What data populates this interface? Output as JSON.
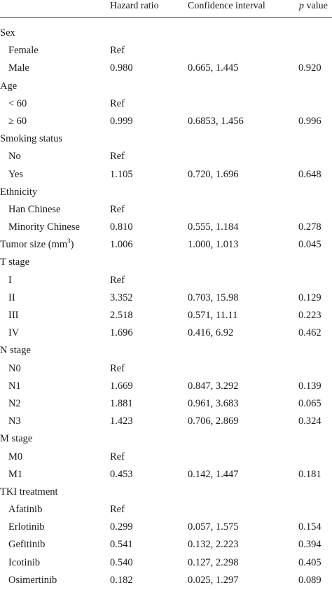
{
  "header": {
    "hazard_ratio": "Hazard ratio",
    "confidence_interval": "Confidence interval",
    "p_value_italic": "p",
    "p_value_suffix": " value"
  },
  "rows": [
    {
      "label": "Sex",
      "hr": "",
      "ci": "",
      "p": "",
      "type": "group"
    },
    {
      "label": "Female",
      "hr": "Ref",
      "ci": "",
      "p": "",
      "type": "sub"
    },
    {
      "label": "Male",
      "hr": "0.980",
      "ci": "0.665, 1.445",
      "p": "0.920",
      "type": "sub"
    },
    {
      "label": "Age",
      "hr": "",
      "ci": "",
      "p": "",
      "type": "group"
    },
    {
      "label": "< 60",
      "hr": "Ref",
      "ci": "",
      "p": "",
      "type": "sub"
    },
    {
      "label": "≥ 60",
      "hr": "0.999",
      "ci": "0.6853, 1.456",
      "p": "0.996",
      "type": "sub"
    },
    {
      "label": "Smoking status",
      "hr": "",
      "ci": "",
      "p": "",
      "type": "group"
    },
    {
      "label": "No",
      "hr": "Ref",
      "ci": "",
      "p": "",
      "type": "sub"
    },
    {
      "label": "Yes",
      "hr": "1.105",
      "ci": "0.720, 1.696",
      "p": "0.648",
      "type": "sub"
    },
    {
      "label": "Ethnicity",
      "hr": "",
      "ci": "",
      "p": "",
      "type": "group"
    },
    {
      "label": "Han Chinese",
      "hr": "Ref",
      "ci": "",
      "p": "",
      "type": "sub"
    },
    {
      "label": "Minority Chinese",
      "hr": "0.810",
      "ci": "0.555, 1.184",
      "p": "0.278",
      "type": "sub"
    },
    {
      "label": "Tumor size (mm",
      "sup": "3",
      "label_suffix": ")",
      "hr": "1.006",
      "ci": "1.000, 1.013",
      "p": "0.045",
      "type": "group"
    },
    {
      "label": "T stage",
      "hr": "",
      "ci": "",
      "p": "",
      "type": "group"
    },
    {
      "label": "I",
      "hr": "Ref",
      "ci": "",
      "p": "",
      "type": "sub"
    },
    {
      "label": "II",
      "hr": "3.352",
      "ci": "0.703, 15.98",
      "p": "0.129",
      "type": "sub"
    },
    {
      "label": "III",
      "hr": "2.518",
      "ci": "0.571, 11.11",
      "p": "0.223",
      "type": "sub"
    },
    {
      "label": "IV",
      "hr": "1.696",
      "ci": "0.416, 6.92",
      "p": "0.462",
      "type": "sub"
    },
    {
      "label": "N stage",
      "hr": "",
      "ci": "",
      "p": "",
      "type": "group"
    },
    {
      "label": "N0",
      "hr": "Ref",
      "ci": "",
      "p": "",
      "type": "sub"
    },
    {
      "label": "N1",
      "hr": "1.669",
      "ci": "0.847, 3.292",
      "p": "0.139",
      "type": "sub"
    },
    {
      "label": "N2",
      "hr": "1.881",
      "ci": "0.961, 3.683",
      "p": "0.065",
      "type": "sub"
    },
    {
      "label": "N3",
      "hr": "1.423",
      "ci": "0.706, 2.869",
      "p": "0.324",
      "type": "sub"
    },
    {
      "label": "M stage",
      "hr": "",
      "ci": "",
      "p": "",
      "type": "group"
    },
    {
      "label": "M0",
      "hr": "Ref",
      "ci": "",
      "p": "",
      "type": "sub"
    },
    {
      "label": "M1",
      "hr": "0.453",
      "ci": "0.142, 1.447",
      "p": "0.181",
      "type": "sub"
    },
    {
      "label": "TKI treatment",
      "hr": "",
      "ci": "",
      "p": "",
      "type": "group"
    },
    {
      "label": "Afatinib",
      "hr": "Ref",
      "ci": "",
      "p": "",
      "type": "sub"
    },
    {
      "label": "Erlotinib",
      "hr": "0.299",
      "ci": "0.057, 1.575",
      "p": "0.154",
      "type": "sub"
    },
    {
      "label": "Gefitinib",
      "hr": "0.541",
      "ci": "0.132, 2.223",
      "p": "0.394",
      "type": "sub"
    },
    {
      "label": "Icotinib",
      "hr": "0.540",
      "ci": "0.127, 2.298",
      "p": "0.405",
      "type": "sub"
    },
    {
      "label": "Osimertinib",
      "hr": "0.182",
      "ci": "0.025, 1.297",
      "p": "0.089",
      "type": "sub"
    }
  ]
}
